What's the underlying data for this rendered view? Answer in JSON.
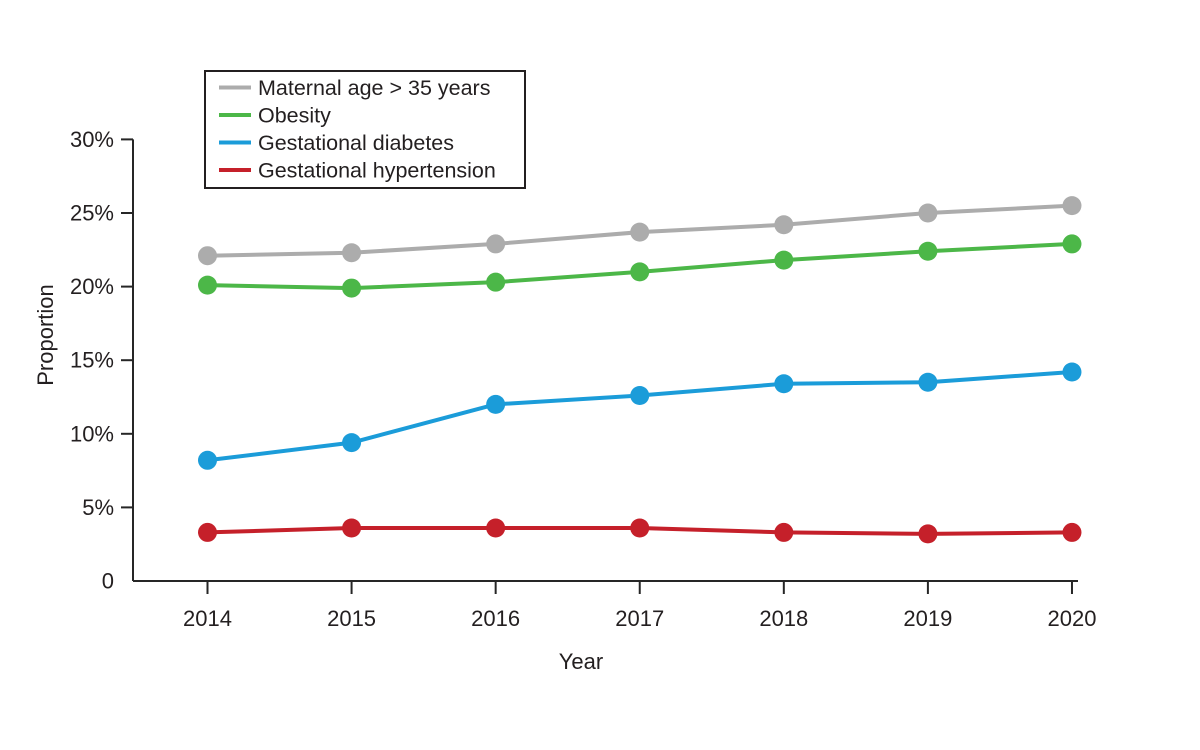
{
  "chart_data": {
    "type": "line",
    "title": "",
    "xlabel": "Year",
    "ylabel": "Proportion",
    "x": [
      2014,
      2015,
      2016,
      2017,
      2018,
      2019,
      2020
    ],
    "ylim": [
      0,
      30
    ],
    "yticks": [
      {
        "value": 0,
        "label": "0"
      },
      {
        "value": 5,
        "label": "5%"
      },
      {
        "value": 10,
        "label": "10%"
      },
      {
        "value": 15,
        "label": "15%"
      },
      {
        "value": 20,
        "label": "20%"
      },
      {
        "value": 25,
        "label": "25%"
      },
      {
        "value": 30,
        "label": "30%"
      }
    ],
    "grid": false,
    "legend_position": "top-left-boxed",
    "marker": "circle",
    "axis_color": "#262626",
    "text_color": "#231f20",
    "series": [
      {
        "name": "Maternal age > 35 years",
        "color": "#acacac",
        "values": [
          22.1,
          22.3,
          22.9,
          23.7,
          24.2,
          25.0,
          25.5
        ]
      },
      {
        "name": "Obesity",
        "color": "#4cb748",
        "values": [
          20.1,
          19.9,
          20.3,
          21.0,
          21.8,
          22.4,
          22.9
        ]
      },
      {
        "name": "Gestational diabetes",
        "color": "#1b9cd9",
        "values": [
          8.2,
          9.4,
          12.0,
          12.6,
          13.4,
          13.5,
          14.2
        ]
      },
      {
        "name": "Gestational hypertension",
        "color": "#c5202a",
        "values": [
          3.3,
          3.6,
          3.6,
          3.6,
          3.3,
          3.2,
          3.3
        ]
      }
    ]
  }
}
